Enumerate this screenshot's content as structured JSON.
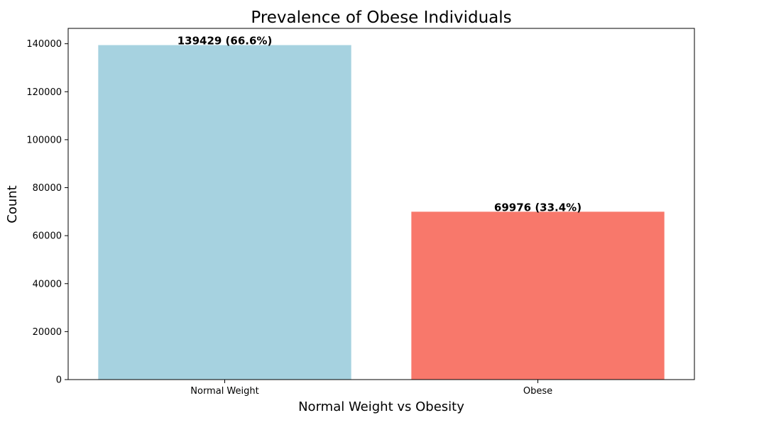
{
  "chart_data": {
    "type": "bar",
    "title": "Prevalence of Obese Individuals",
    "xlabel": "Normal Weight vs Obesity",
    "ylabel": "Count",
    "categories": [
      "Normal Weight",
      "Obese"
    ],
    "values": [
      139429,
      69976
    ],
    "bar_labels": [
      "139429 (66.6%)",
      "69976 (33.4%)"
    ],
    "colors": [
      "#a6d2e0",
      "#f8786b"
    ],
    "ylim": [
      0,
      146400
    ],
    "yticks": [
      0,
      20000,
      40000,
      60000,
      80000,
      100000,
      120000,
      140000
    ],
    "grid": false,
    "legend": "none"
  }
}
